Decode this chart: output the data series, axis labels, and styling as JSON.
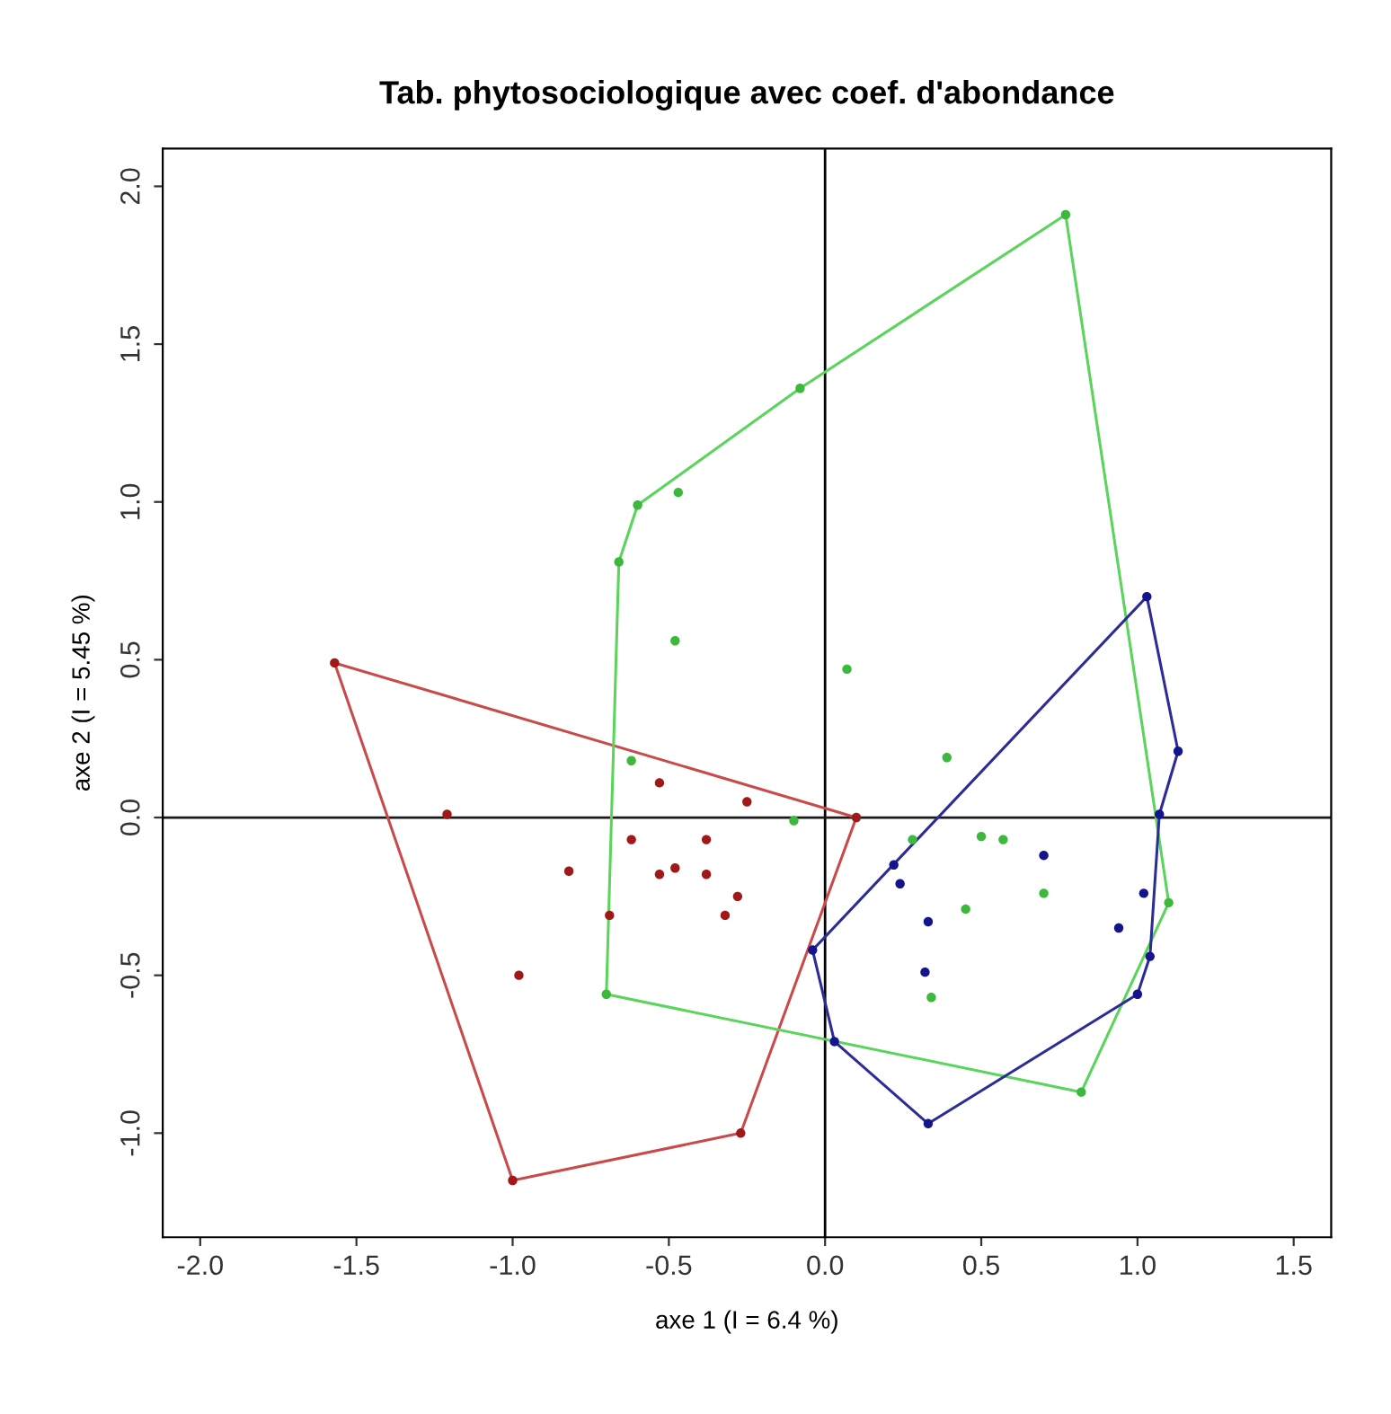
{
  "chart_data": {
    "type": "scatter",
    "title": "Tab. phytosociologique avec coef. d'abondance",
    "xlabel": "axe 1 (I = 6.4 %)",
    "ylabel": "axe 2 (I = 5.45 %)",
    "xlim": [
      -2.12,
      1.62
    ],
    "ylim": [
      -1.33,
      2.12
    ],
    "xticks": [
      {
        "value": -2,
        "label": "-2.0"
      },
      {
        "value": -1.5,
        "label": "-1.5"
      },
      {
        "value": -1,
        "label": "-1.0"
      },
      {
        "value": -0.5,
        "label": "-0.5"
      },
      {
        "value": 0,
        "label": "0.0"
      },
      {
        "value": 0.5,
        "label": "0.5"
      },
      {
        "value": 1,
        "label": "1.0"
      },
      {
        "value": 1.5,
        "label": "1.5"
      }
    ],
    "yticks": [
      {
        "value": -1,
        "label": "-1.0"
      },
      {
        "value": -0.5,
        "label": "-0.5"
      },
      {
        "value": 0,
        "label": "0.0"
      },
      {
        "value": 0.5,
        "label": "0.5"
      },
      {
        "value": 1,
        "label": "1.0"
      },
      {
        "value": 1.5,
        "label": "1.5"
      },
      {
        "value": 2,
        "label": "2.0"
      }
    ],
    "grid": false,
    "marker": "circle",
    "ref_lines": [
      {
        "axis": "x",
        "value": 0,
        "color": "#000000"
      },
      {
        "axis": "y",
        "value": 0,
        "color": "#1a1a1a"
      }
    ],
    "series": [
      {
        "color": "#a01818",
        "x": [
          -1.57,
          -1.21,
          -0.53,
          -0.25,
          0.1,
          -0.62,
          -0.38,
          -0.82,
          -0.53,
          -0.48,
          -0.38,
          -0.28,
          -0.32,
          -0.69,
          -0.98,
          -1.0,
          -0.27
        ],
        "values": [
          0.49,
          0.01,
          0.11,
          0.05,
          0.0,
          -0.07,
          -0.07,
          -0.17,
          -0.18,
          -0.16,
          -0.18,
          -0.25,
          -0.31,
          -0.31,
          -0.5,
          -1.15,
          -1.0
        ]
      },
      {
        "color": "#3cb83c",
        "x": [
          0.77,
          -0.08,
          -0.47,
          -0.6,
          -0.66,
          -0.48,
          0.07,
          -0.62,
          -0.1,
          -0.7,
          0.39,
          0.28,
          0.5,
          0.57,
          0.7,
          0.45,
          0.34,
          1.1,
          0.82
        ],
        "values": [
          1.91,
          1.36,
          1.03,
          0.99,
          0.81,
          0.56,
          0.47,
          0.18,
          -0.01,
          -0.56,
          0.19,
          -0.07,
          -0.06,
          -0.07,
          -0.24,
          -0.29,
          -0.57,
          -0.27,
          -0.87
        ]
      },
      {
        "color": "#14148c",
        "x": [
          1.03,
          1.13,
          1.07,
          0.7,
          0.22,
          0.24,
          1.02,
          0.94,
          0.33,
          1.04,
          0.32,
          1.0,
          -0.04,
          0.03,
          0.33
        ],
        "values": [
          0.7,
          0.21,
          0.01,
          -0.12,
          -0.15,
          -0.21,
          -0.24,
          -0.35,
          -0.33,
          -0.44,
          -0.49,
          -0.56,
          -0.42,
          -0.71,
          -0.97
        ]
      },
      {
        "type": "line",
        "marker": "none",
        "color": "#c84a4a",
        "x": [
          -1.57,
          0.1
        ],
        "values": [
          0.49,
          0.0
        ]
      },
      {
        "type": "line",
        "marker": "none",
        "color": "#c84a4a",
        "x": [
          -1.57,
          -1.0,
          -0.27,
          0.1
        ],
        "values": [
          0.49,
          -1.15,
          -1.0,
          0.0
        ]
      },
      {
        "type": "line",
        "marker": "none",
        "color": "#5ad45a",
        "x": [
          -0.7,
          -0.66,
          -0.6,
          -0.08,
          0.77,
          1.1
        ],
        "values": [
          -0.56,
          0.81,
          0.99,
          1.36,
          1.91,
          -0.27
        ]
      },
      {
        "type": "line",
        "marker": "none",
        "color": "#5ad45a",
        "x": [
          -0.7,
          0.82,
          1.1
        ],
        "values": [
          -0.56,
          -0.87,
          -0.27
        ]
      },
      {
        "type": "line",
        "marker": "none",
        "color": "#2c2c96",
        "x": [
          -0.04,
          1.03,
          1.13
        ],
        "values": [
          -0.42,
          0.7,
          0.21
        ]
      },
      {
        "type": "line",
        "marker": "none",
        "color": "#2c2c96",
        "x": [
          -0.04,
          0.03,
          0.33,
          1.0,
          1.04,
          1.07,
          1.13
        ],
        "values": [
          -0.42,
          -0.71,
          -0.97,
          -0.56,
          -0.44,
          0.01,
          0.21
        ]
      }
    ]
  }
}
